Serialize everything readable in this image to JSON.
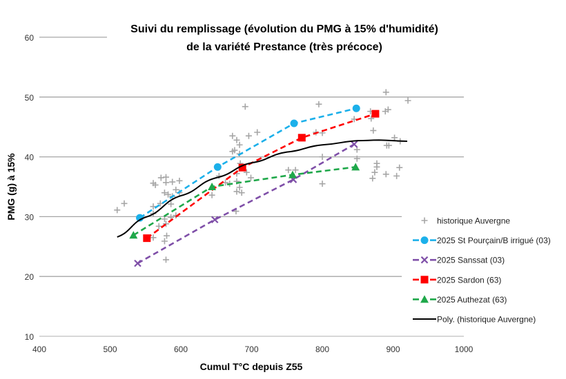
{
  "chart_data": {
    "type": "scatter",
    "title": [
      "Suivi du remplissage (évolution du PMG à 15% d'humidité)",
      "de la variété Prestance (très précoce)"
    ],
    "xlabel": "Cumul T°C depuis Z55",
    "ylabel": "PMG (g) à 15%",
    "xlim": [
      400,
      1000
    ],
    "ylim": [
      10,
      60
    ],
    "xticks": [
      400,
      500,
      600,
      700,
      800,
      900,
      1000
    ],
    "yticks": [
      10,
      20,
      30,
      40,
      50,
      60
    ],
    "grid": "horizontal",
    "legend_placement": "bottom-right",
    "series": [
      {
        "name": "historique Auvergne",
        "kind": "scatter",
        "marker": "plus",
        "color": "#a6a6a6",
        "points": [
          [
            510,
            31.1
          ],
          [
            520,
            32.2
          ],
          [
            561,
            35.6
          ],
          [
            572,
            36.5
          ],
          [
            579,
            36.6
          ],
          [
            579,
            35.7
          ],
          [
            588,
            35.8
          ],
          [
            598,
            36.0
          ],
          [
            561,
            31.7
          ],
          [
            561,
            30.5
          ],
          [
            577,
            34.0
          ],
          [
            588,
            33.4
          ],
          [
            593,
            34.5
          ],
          [
            598,
            34.0
          ],
          [
            586,
            32.1
          ],
          [
            577,
            29.6
          ],
          [
            586,
            29.9
          ],
          [
            593,
            30.2
          ],
          [
            569,
            28.4
          ],
          [
            579,
            28.8
          ],
          [
            580,
            26.8
          ],
          [
            561,
            26.5
          ],
          [
            577,
            25.9
          ],
          [
            579,
            22.8
          ],
          [
            582,
            33.7
          ],
          [
            571,
            32.2
          ],
          [
            564,
            35.3
          ],
          [
            691,
            48.4
          ],
          [
            795,
            48.8
          ],
          [
            673,
            43.5
          ],
          [
            679,
            42.8
          ],
          [
            683,
            42.0
          ],
          [
            696,
            43.5
          ],
          [
            708,
            44.1
          ],
          [
            673,
            40.9
          ],
          [
            676,
            41.1
          ],
          [
            683,
            40.5
          ],
          [
            684,
            38.9
          ],
          [
            679,
            37.2
          ],
          [
            693,
            37.4
          ],
          [
            699,
            36.5
          ],
          [
            679,
            35.9
          ],
          [
            683,
            34.9
          ],
          [
            679,
            34.2
          ],
          [
            686,
            34.0
          ],
          [
            654,
            36.8
          ],
          [
            663,
            35.7
          ],
          [
            669,
            35.5
          ],
          [
            644,
            33.6
          ],
          [
            752,
            37.8
          ],
          [
            762,
            37.8
          ],
          [
            800,
            44.0
          ],
          [
            791,
            44.1
          ],
          [
            800,
            40.0
          ],
          [
            800,
            35.5
          ],
          [
            678,
            30.9
          ],
          [
            890,
            50.8
          ],
          [
            921,
            49.4
          ],
          [
            868,
            47.6
          ],
          [
            893,
            47.9
          ],
          [
            889,
            47.6
          ],
          [
            869,
            46.4
          ],
          [
            872,
            44.4
          ],
          [
            902,
            43.2
          ],
          [
            910,
            42.6
          ],
          [
            891,
            41.9
          ],
          [
            894,
            41.9
          ],
          [
            877,
            38.9
          ],
          [
            877,
            38.3
          ],
          [
            909,
            38.2
          ],
          [
            874,
            37.4
          ],
          [
            890,
            37.1
          ],
          [
            905,
            36.8
          ],
          [
            871,
            36.4
          ],
          [
            845,
            46.3
          ],
          [
            849,
            41.2
          ],
          [
            849,
            39.7
          ]
        ]
      },
      {
        "name": "2025 St Pourçain/B irrigué (03)",
        "kind": "dashed-line",
        "marker": "circle",
        "color": "#1cb0ea",
        "points": [
          [
            542,
            29.8
          ],
          [
            652,
            38.3
          ],
          [
            760,
            45.6
          ],
          [
            848,
            48.1
          ]
        ]
      },
      {
        "name": "2025 Sanssat (03)",
        "kind": "dashed-line",
        "marker": "x",
        "color": "#7f4fa8",
        "points": [
          [
            539,
            22.2
          ],
          [
            648,
            29.5
          ],
          [
            759,
            36.2
          ],
          [
            845,
            42.1
          ]
        ]
      },
      {
        "name": "2025 Sardon (63)",
        "kind": "dashed-line",
        "marker": "square",
        "color": "#ff0000",
        "points": [
          [
            552,
            26.4
          ],
          [
            687,
            38.2
          ],
          [
            771,
            43.2
          ],
          [
            875,
            47.2
          ]
        ]
      },
      {
        "name": "2025 Authezat (63)",
        "kind": "dashed-line",
        "marker": "triangle",
        "color": "#1fa84a",
        "points": [
          [
            533,
            26.9
          ],
          [
            644,
            35.0
          ],
          [
            758,
            37.0
          ],
          [
            847,
            38.3
          ]
        ]
      },
      {
        "name": "Poly. (historique Auvergne)",
        "kind": "trendline",
        "marker": "none",
        "color": "#000000",
        "points": [
          [
            510,
            26.6
          ],
          [
            550,
            29.9
          ],
          [
            600,
            33.5
          ],
          [
            650,
            36.5
          ],
          [
            700,
            39.0
          ],
          [
            750,
            40.8
          ],
          [
            800,
            42.0
          ],
          [
            850,
            42.7
          ],
          [
            880,
            42.8
          ],
          [
            920,
            42.6
          ]
        ]
      }
    ]
  }
}
